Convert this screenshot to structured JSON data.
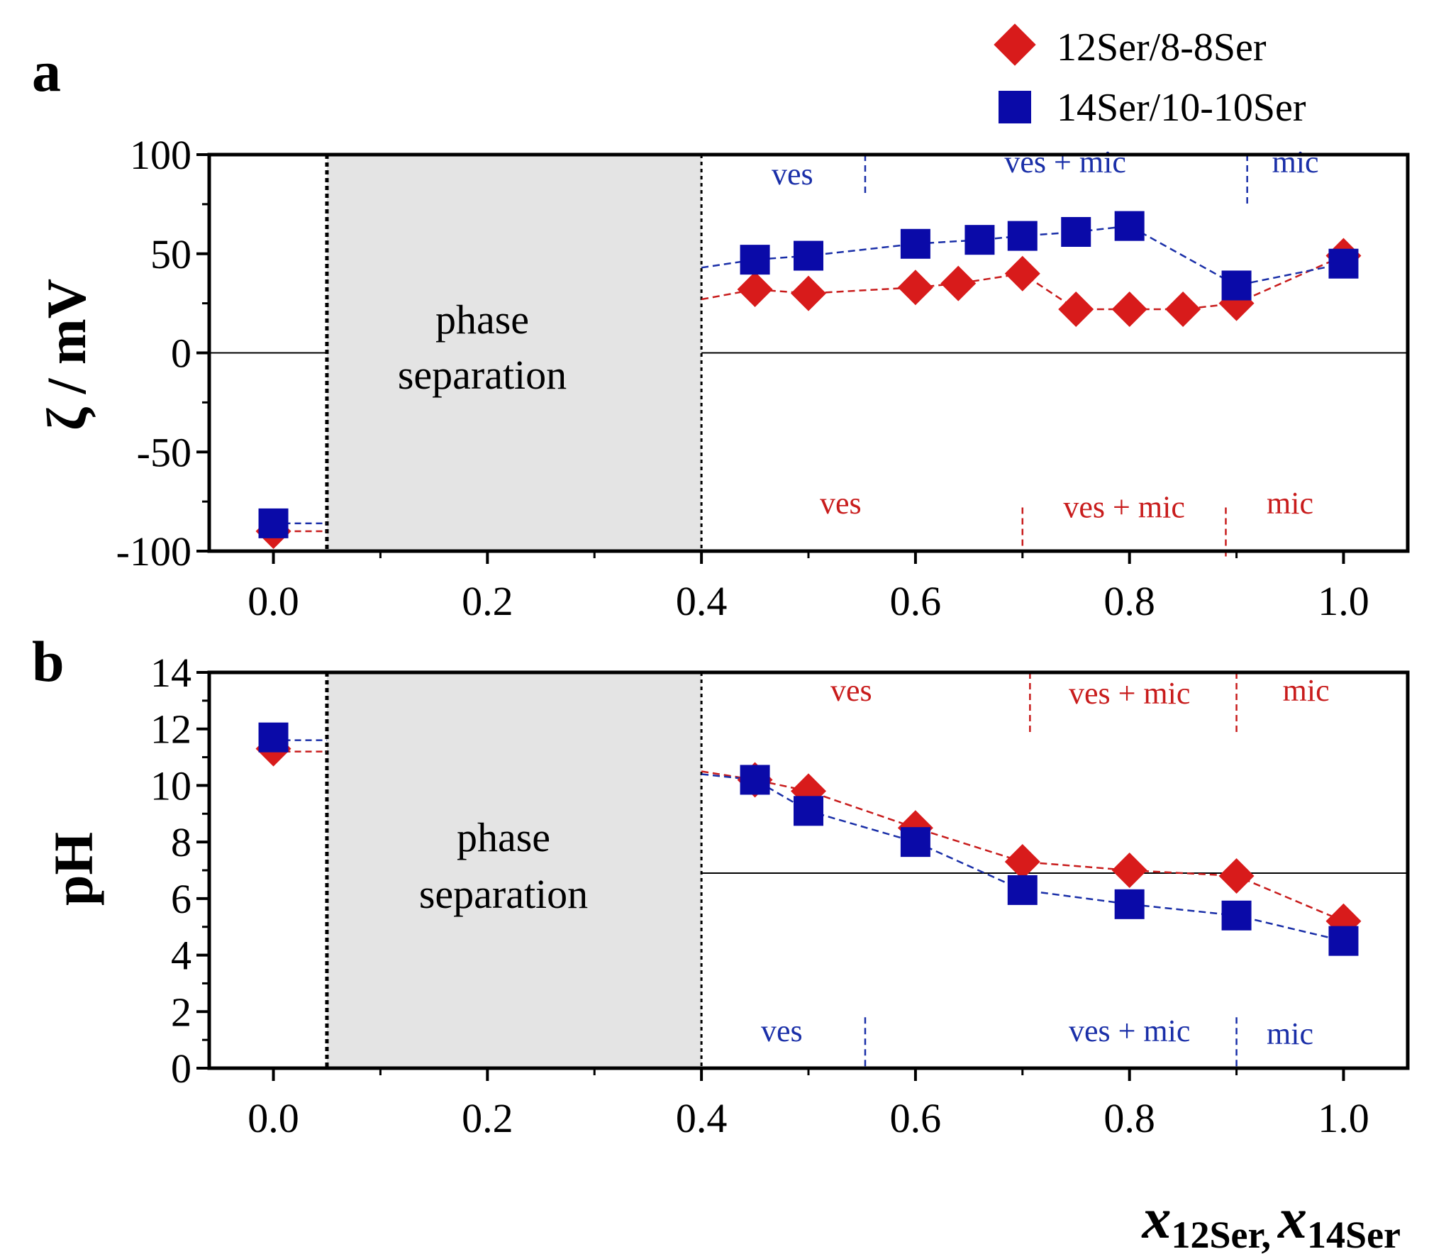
{
  "colors": {
    "red": "#d81b1b",
    "blue": "#0a0aa8",
    "red_line": "#c81c1c",
    "blue_line": "#1a2fa8",
    "phase_fill": "#e4e4e4"
  },
  "legend": {
    "series_red": "12Ser/8-8Ser",
    "series_blue": "14Ser/10-10Ser"
  },
  "x_axis": {
    "label_main_1": "x",
    "label_sub_1": "12Ser,",
    "label_main_2": "x",
    "label_sub_2": "14Ser",
    "ticks": [
      0.0,
      0.2,
      0.4,
      0.6,
      0.8,
      1.0
    ],
    "tick_labels": [
      "0.0",
      "0.2",
      "0.4",
      "0.6",
      "0.8",
      "1.0"
    ],
    "xlim": [
      -0.06,
      1.06
    ]
  },
  "phase_region": {
    "x_range": [
      0.05,
      0.4
    ],
    "label_line1": "phase",
    "label_line2": "separation"
  },
  "chart_data": [
    {
      "type": "scatter",
      "panel": "a",
      "ylabel": "ζ / mV",
      "ylim": [
        -100,
        100
      ],
      "yticks": [
        100,
        50,
        0,
        -50,
        -100
      ],
      "ytick_labels": [
        "100",
        "50",
        "0",
        "-50",
        "-100"
      ],
      "reference_line": 0,
      "series": [
        {
          "name": "12Ser/8-8Ser",
          "marker": "diamond",
          "x": [
            0.0,
            0.45,
            0.5,
            0.6,
            0.64,
            0.7,
            0.75,
            0.8,
            0.85,
            0.9,
            1.0
          ],
          "y": [
            -90,
            32,
            30,
            33,
            35,
            40,
            22,
            22,
            22,
            25,
            49
          ],
          "stub_left": [
            0.0,
            0.05,
            -90
          ],
          "stub_right_start": [
            0.4,
            27
          ]
        },
        {
          "name": "14Ser/10-10Ser",
          "marker": "square",
          "x": [
            0.0,
            0.45,
            0.5,
            0.6,
            0.66,
            0.7,
            0.75,
            0.8,
            0.9,
            1.0
          ],
          "y": [
            -86,
            47,
            49,
            55,
            57,
            59,
            61,
            64,
            34,
            45
          ],
          "stub_left": [
            0.0,
            0.05,
            -86
          ],
          "stub_right_start": [
            0.4,
            43
          ]
        }
      ],
      "annotations": [
        {
          "text": "ves",
          "color": "blue",
          "x": 0.485,
          "y": 85
        },
        {
          "text": "ves + mic",
          "color": "blue",
          "x": 0.74,
          "y": 91
        },
        {
          "text": "mic",
          "color": "blue",
          "x": 0.955,
          "y": 91
        },
        {
          "text": "ves",
          "color": "red",
          "x": 0.53,
          "y": -81
        },
        {
          "text": "ves + mic",
          "color": "red",
          "x": 0.795,
          "y": -83
        },
        {
          "text": "mic",
          "color": "red",
          "x": 0.95,
          "y": -81
        }
      ],
      "boundaries": [
        {
          "x": 0.553,
          "color": "blue",
          "y_range": [
            100,
            80
          ]
        },
        {
          "x": 0.91,
          "color": "blue",
          "y_range": [
            100,
            75
          ]
        },
        {
          "x": 0.7,
          "color": "red",
          "y_range": [
            -78,
            -103
          ]
        },
        {
          "x": 0.89,
          "color": "red",
          "y_range": [
            -78,
            -103
          ]
        }
      ]
    },
    {
      "type": "scatter",
      "panel": "b",
      "ylabel": "pH",
      "ylim": [
        0,
        14
      ],
      "yticks": [
        14,
        12,
        10,
        8,
        6,
        4,
        2,
        0
      ],
      "ytick_labels": [
        "14",
        "12",
        "10",
        "8",
        "6",
        "4",
        "2",
        "0"
      ],
      "reference_line": 6.9,
      "series": [
        {
          "name": "12Ser/8-8Ser",
          "marker": "diamond",
          "x": [
            0.0,
            0.45,
            0.5,
            0.6,
            0.7,
            0.8,
            0.9,
            1.0
          ],
          "y": [
            11.3,
            10.2,
            9.8,
            8.5,
            7.3,
            7.0,
            6.8,
            5.2
          ],
          "stub_left": [
            0.0,
            0.05,
            11.2
          ],
          "stub_right_start": [
            0.4,
            10.5
          ]
        },
        {
          "name": "14Ser/10-10Ser",
          "marker": "square",
          "x": [
            0.0,
            0.45,
            0.5,
            0.6,
            0.7,
            0.8,
            0.9,
            1.0
          ],
          "y": [
            11.7,
            10.2,
            9.1,
            8.0,
            6.3,
            5.8,
            5.4,
            4.5
          ],
          "stub_left": [
            0.0,
            0.05,
            11.6
          ],
          "stub_right_start": [
            0.4,
            10.4
          ]
        }
      ],
      "annotations": [
        {
          "text": "ves",
          "color": "red",
          "x": 0.54,
          "y": 13.0
        },
        {
          "text": "ves + mic",
          "color": "red",
          "x": 0.8,
          "y": 12.9
        },
        {
          "text": "mic",
          "color": "red",
          "x": 0.965,
          "y": 13.0
        },
        {
          "text": "ves",
          "color": "blue",
          "x": 0.475,
          "y": 0.95
        },
        {
          "text": "ves + mic",
          "color": "blue",
          "x": 0.8,
          "y": 0.95
        },
        {
          "text": "mic",
          "color": "blue",
          "x": 0.95,
          "y": 0.85
        }
      ],
      "boundaries": [
        {
          "x": 0.707,
          "color": "red",
          "y_range": [
            14,
            11.8
          ]
        },
        {
          "x": 0.9,
          "color": "red",
          "y_range": [
            14,
            11.8
          ]
        },
        {
          "x": 0.553,
          "color": "blue",
          "y_range": [
            1.8,
            0
          ]
        },
        {
          "x": 0.9,
          "color": "blue",
          "y_range": [
            1.8,
            0
          ]
        }
      ]
    }
  ]
}
